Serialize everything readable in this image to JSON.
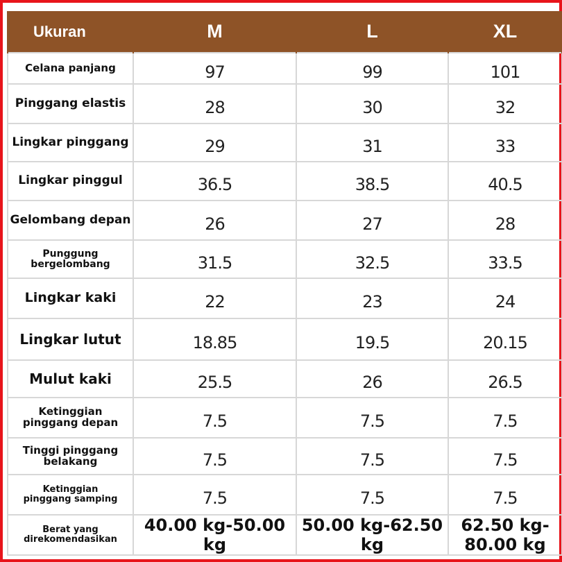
{
  "table": {
    "header": [
      "Ukuran",
      "M",
      "L",
      "XL"
    ],
    "rows": [
      {
        "label": "Celana panjang",
        "values": [
          "97",
          "99",
          "101"
        ]
      },
      {
        "label": "Pinggang elastis",
        "values": [
          "28",
          "30",
          "32"
        ]
      },
      {
        "label": "Lingkar pinggang",
        "values": [
          "29",
          "31",
          "33"
        ]
      },
      {
        "label": "Lingkar pinggul",
        "values": [
          "36.5",
          "38.5",
          "40.5"
        ]
      },
      {
        "label": "Gelombang depan",
        "values": [
          "26",
          "27",
          "28"
        ]
      },
      {
        "label": "Punggung\nbergelombang",
        "values": [
          "31.5",
          "32.5",
          "33.5"
        ]
      },
      {
        "label": "Lingkar kaki",
        "values": [
          "22",
          "23",
          "24"
        ]
      },
      {
        "label": "Lingkar lutut",
        "values": [
          "18.85",
          "19.5",
          "20.15"
        ]
      },
      {
        "label": "Mulut kaki",
        "values": [
          "25.5",
          "26",
          "26.5"
        ]
      },
      {
        "label": "Ketinggian\npinggang depan",
        "values": [
          "7.5",
          "7.5",
          "7.5"
        ]
      },
      {
        "label": "Tinggi pinggang\nbelakang",
        "values": [
          "7.5",
          "7.5",
          "7.5"
        ]
      },
      {
        "label": "Ketinggian\npinggang samping",
        "values": [
          "7.5",
          "7.5",
          "7.5"
        ]
      },
      {
        "label": "Berat yang\ndirekomendasikan",
        "values": [
          "40.00 kg-50.00 kg",
          "50.00 kg-62.50 kg",
          "62.50 kg-80.00 kg"
        ]
      }
    ]
  },
  "colors": {
    "header_background": "#8e5327",
    "header_text": "#ffffff",
    "frame_border": "#e8141b",
    "grid_lines": "#d7d7d7"
  }
}
